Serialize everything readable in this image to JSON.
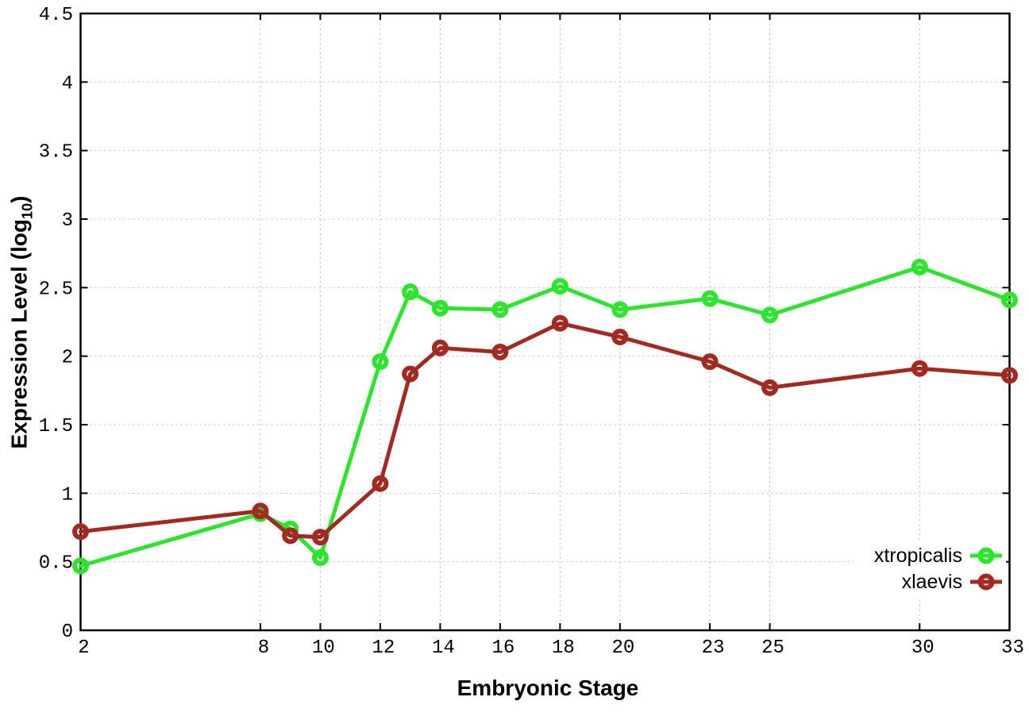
{
  "figure": {
    "background": "#ffffff",
    "border_color": "#000000",
    "grid_color": "#b9b9b9",
    "tick_color": "#000000"
  },
  "chart_data": {
    "type": "line",
    "title": "",
    "xlabel": "Embryonic Stage",
    "ylabel": "Expression Level (log10)",
    "ylabel_parts": {
      "main": "Expression Level (log",
      "sub": "10",
      "close": ")"
    },
    "xlim": [
      2,
      33
    ],
    "ylim": [
      0,
      4.5
    ],
    "x_ticks": [
      2,
      8,
      10,
      12,
      14,
      16,
      18,
      20,
      23,
      25,
      30,
      33
    ],
    "x_tick_labels": [
      "2",
      "8",
      "10",
      "12",
      "14",
      "16",
      "18",
      "20",
      "23",
      "25",
      "30",
      "33"
    ],
    "y_ticks": [
      0,
      0.5,
      1,
      1.5,
      2,
      2.5,
      3,
      3.5,
      4,
      4.5
    ],
    "y_tick_labels": [
      "0",
      "0.5",
      "1",
      "1.5",
      "2",
      "2.5",
      "3",
      "3.5",
      "4",
      "4.5"
    ],
    "grid": true,
    "legend_position": "inside-bottom-right",
    "legend_opaque": true,
    "marker": "open-circle",
    "x": [
      2,
      8,
      9,
      10,
      12,
      13,
      14,
      16,
      18,
      20,
      23,
      25,
      30,
      33
    ],
    "series": [
      {
        "name": "xtropicalis",
        "color": "#2ee52e",
        "values": [
          0.47,
          0.85,
          0.74,
          0.53,
          1.96,
          2.47,
          2.35,
          2.34,
          2.51,
          2.34,
          2.42,
          2.3,
          2.65,
          2.41
        ]
      },
      {
        "name": "xlaevis",
        "color": "#a32a20",
        "values": [
          0.72,
          0.87,
          0.69,
          0.68,
          1.07,
          1.87,
          2.06,
          2.03,
          2.24,
          2.14,
          1.96,
          1.77,
          1.91,
          1.86
        ]
      }
    ]
  }
}
